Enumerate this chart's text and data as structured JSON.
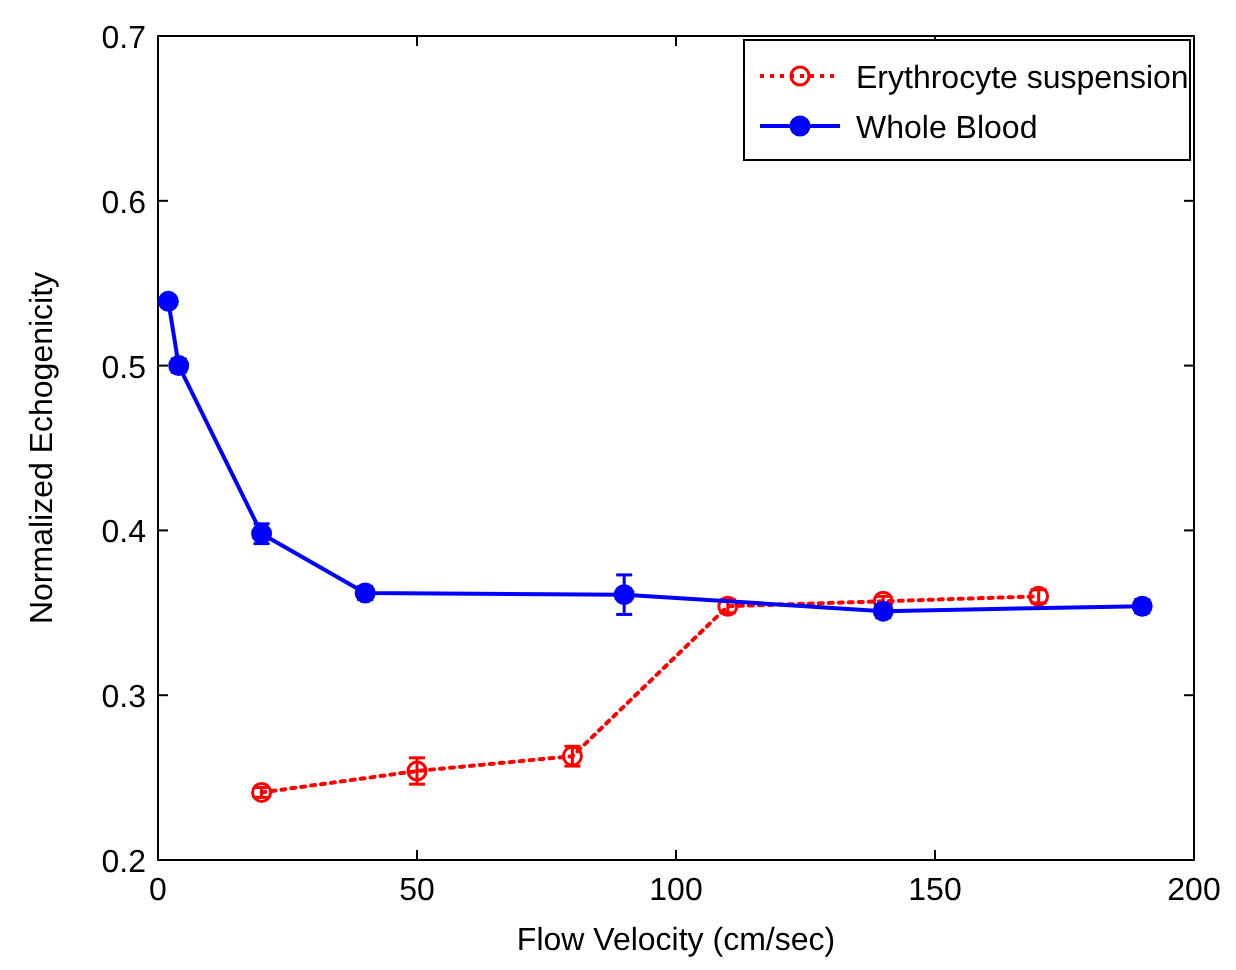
{
  "chart_data": {
    "type": "line",
    "xlabel": "Flow Velocity (cm/sec)",
    "ylabel": "Normalized Echogenicity",
    "xlim": [
      0,
      200
    ],
    "ylim": [
      0.2,
      0.7
    ],
    "xticks": [
      0,
      50,
      100,
      150,
      200
    ],
    "yticks": [
      0.2,
      0.3,
      0.4,
      0.5,
      0.6,
      0.7
    ],
    "grid": false,
    "legend": "top right",
    "series": [
      {
        "name": "Erythrocyte suspension",
        "color": "#ff0000",
        "line_style": "dotted",
        "marker": "circle",
        "x": [
          20,
          50,
          80,
          110,
          140,
          170
        ],
        "values": [
          0.241,
          0.254,
          0.263,
          0.354,
          0.357,
          0.36
        ],
        "errors": [
          0.003,
          0.008,
          0.006,
          0.004,
          0.003,
          0.004
        ]
      },
      {
        "name": "Whole Blood",
        "color": "#0000ff",
        "line_style": "solid",
        "marker": "circle",
        "x": [
          2,
          4,
          20,
          40,
          90,
          140,
          190
        ],
        "values": [
          0.539,
          0.5,
          0.398,
          0.362,
          0.361,
          0.351,
          0.354
        ],
        "errors": [
          0.003,
          0.004,
          0.006,
          0.004,
          0.012,
          0.004,
          0.004
        ]
      }
    ]
  }
}
